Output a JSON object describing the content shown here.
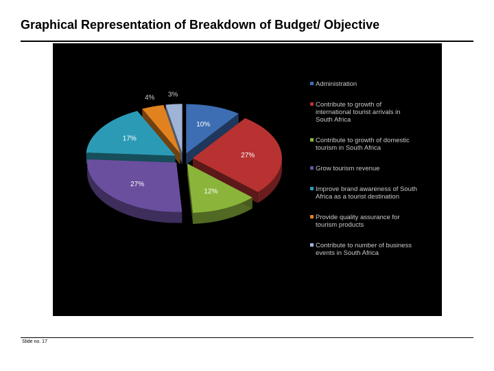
{
  "slide": {
    "title": "Graphical Representation of Breakdown of Budget/ Objective",
    "slide_number": "Slide no. 17"
  },
  "chart_data": {
    "type": "pie",
    "title": "",
    "legend_position": "right",
    "categories": [
      "Administration",
      "Contribute to growth of international  tourist arrivals in South Africa",
      "Contribute to growth of domestic tourism in South Africa",
      "Grow tourism revenue",
      "Improve brand awareness of South Africa as a tourist destination",
      "Provide quality assurance for tourism products",
      "Contribute to number of business events in South Africa"
    ],
    "legend_lines": [
      [
        "Administration"
      ],
      [
        "Contribute to growth of",
        "international  tourist arrivals in",
        "South Africa"
      ],
      [
        "Contribute to growth of domestic",
        "tourism in South Africa"
      ],
      [
        "Grow tourism revenue"
      ],
      [
        "Improve brand awareness of South",
        "Africa as a tourist destination"
      ],
      [
        "Provide quality assurance for",
        "tourism products"
      ],
      [
        "Contribute to number of business",
        "events in South Africa"
      ]
    ],
    "values": [
      10,
      27,
      12,
      27,
      17,
      4,
      3
    ],
    "data_labels": [
      "10%",
      "27%",
      "12%",
      "27%",
      "17%",
      "4%",
      "3%"
    ],
    "colors": [
      "#3d6eb3",
      "#b83232",
      "#8bb53a",
      "#6a4f9e",
      "#2b9bb5",
      "#e2821f",
      "#9fb3d6"
    ]
  }
}
